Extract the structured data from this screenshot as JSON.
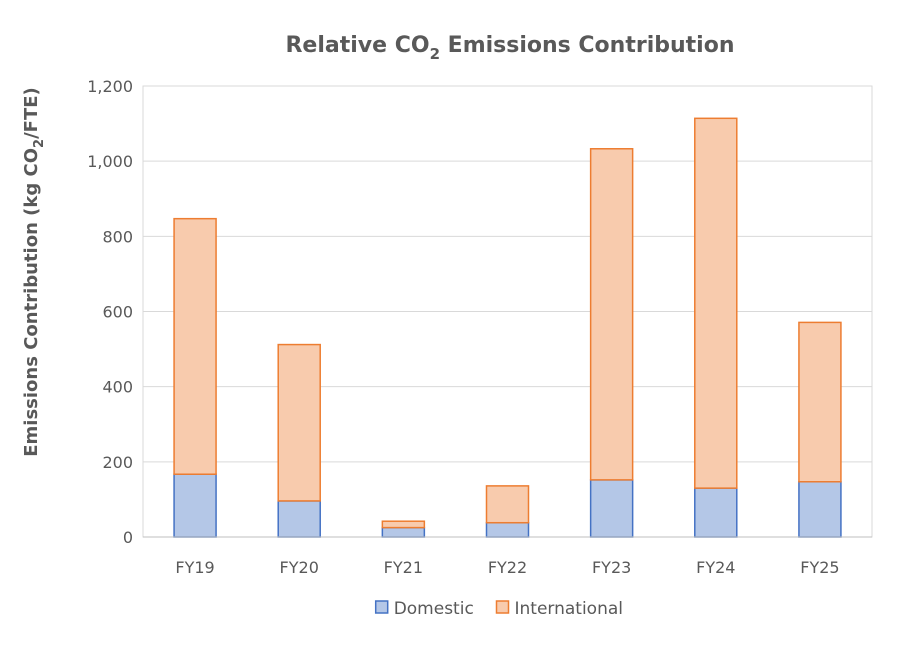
{
  "chart_data": {
    "type": "bar",
    "stacked": true,
    "title": {
      "prefix": "Relative CO",
      "subscript": "2",
      "suffix": " Emissions Contribution"
    },
    "ylabel": {
      "prefix": "Emissions Contribution (kg CO",
      "subscript": "2",
      "suffix": "/FTE)"
    },
    "xlabel": "",
    "categories": [
      "FY19",
      "FY20",
      "FY21",
      "FY22",
      "FY23",
      "FY24",
      "FY25"
    ],
    "series": [
      {
        "name": "Domestic",
        "values": [
          167,
          96,
          25,
          38,
          152,
          130,
          147
        ],
        "fill": "#b4c7e7",
        "stroke": "#4472c4"
      },
      {
        "name": "International",
        "values": [
          680,
          416,
          17,
          98,
          881,
          984,
          424
        ],
        "fill": "#f8cbad",
        "stroke": "#ed7d31"
      }
    ],
    "ylim": [
      0,
      1200
    ],
    "yticks": [
      0,
      200,
      400,
      600,
      800,
      1000,
      1200
    ],
    "ytick_labels": [
      "0",
      "200",
      "400",
      "600",
      "800",
      "1,000",
      "1,200"
    ],
    "grid": true,
    "legend_position": "bottom"
  }
}
